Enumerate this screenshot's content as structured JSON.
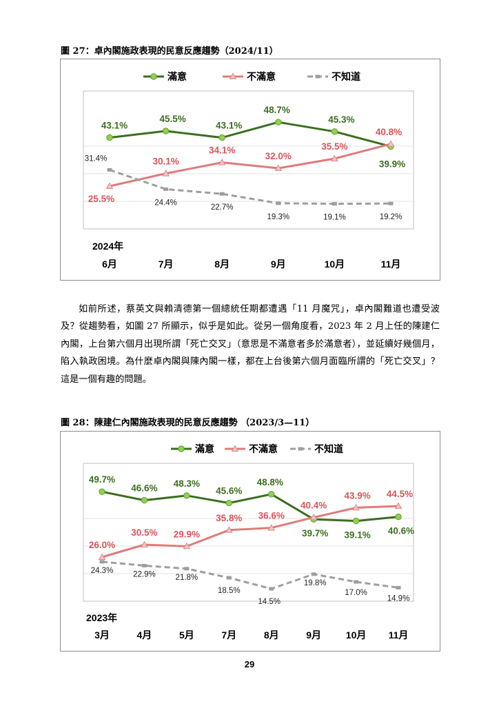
{
  "figure1": {
    "title": "圖 27：卓內閣施政表現的民意反應趨勢（2024/11）"
  },
  "figure2": {
    "title": "圖 28：陳建仁內閣施政表現的民意反應趨勢 （2023/3—11）"
  },
  "paragraph": "如前所述，蔡英文與賴清德第一個總統任期都遭遇「11 月魔咒」，卓內閣難道也遭受波及？從趨勢看，如圖 27 所顯示，似乎是如此。從另一個角度看，2023 年 2 月上任的陳建仁內閣，上台第六個月出現所謂「死亡交叉」（意思是不滿意者多於滿意者），並延續好幾個月，陷入執政困境。為什麼卓內閣與陳內閣一樣，都在上台後第六個月面臨所謂的「死亡交叉」？這是一個有趣的問題。",
  "page_number": "29",
  "colors": {
    "satisfied": "#3b6e1f",
    "satisfied_marker": "#92d050",
    "dissatisfied": "#e07a7a",
    "dissatisfied_text": "#d9545a",
    "unknown": "#9e9e9e"
  },
  "chart_data": [
    {
      "type": "line",
      "year_label": "2024年",
      "categories": [
        "6月",
        "7月",
        "8月",
        "9月",
        "10月",
        "11月"
      ],
      "legend": [
        "滿意",
        "不滿意",
        "不知道"
      ],
      "legend_position": "top",
      "grid": "horizontal",
      "series": [
        {
          "name": "滿意",
          "values": [
            43.1,
            45.5,
            43.1,
            48.7,
            45.3,
            39.9
          ],
          "labels": [
            "43.1%",
            "45.5%",
            "43.1%",
            "48.7%",
            "45.3%",
            "39.9%"
          ]
        },
        {
          "name": "不滿意",
          "values": [
            25.5,
            30.1,
            34.1,
            32.0,
            35.5,
            40.8
          ],
          "labels": [
            "25.5%",
            "30.1%",
            "34.1%",
            "32.0%",
            "35.5%",
            "40.8%"
          ]
        },
        {
          "name": "不知道",
          "values": [
            31.4,
            24.4,
            22.7,
            19.3,
            19.1,
            19.2
          ],
          "labels": [
            "31.4%",
            "24.4%",
            "22.7%",
            "19.3%",
            "19.1%",
            "19.2%"
          ]
        }
      ]
    },
    {
      "type": "line",
      "year_label": "2023年",
      "categories": [
        "3月",
        "4月",
        "5月",
        "7月",
        "8月",
        "9月",
        "10月",
        "11月"
      ],
      "legend": [
        "滿意",
        "不滿意",
        "不知道"
      ],
      "legend_position": "top",
      "grid": "horizontal",
      "series": [
        {
          "name": "滿意",
          "values": [
            49.7,
            46.6,
            48.3,
            45.6,
            48.8,
            39.7,
            39.1,
            40.6
          ],
          "labels": [
            "49.7%",
            "46.6%",
            "48.3%",
            "45.6%",
            "48.8%",
            "39.7%",
            "39.1%",
            "40.6%"
          ]
        },
        {
          "name": "不滿意",
          "values": [
            26.0,
            30.5,
            29.9,
            35.8,
            36.6,
            40.4,
            43.9,
            44.5
          ],
          "labels": [
            "26.0%",
            "30.5%",
            "29.9%",
            "35.8%",
            "36.6%",
            "40.4%",
            "43.9%",
            "44.5%"
          ]
        },
        {
          "name": "不知道",
          "values": [
            24.3,
            22.9,
            21.8,
            18.5,
            14.5,
            19.8,
            17.0,
            14.9
          ],
          "labels": [
            "24.3%",
            "22.9%",
            "21.8%",
            "18.5%",
            "14.5%",
            "19.8%",
            "17.0%",
            "14.9%"
          ]
        }
      ]
    }
  ]
}
